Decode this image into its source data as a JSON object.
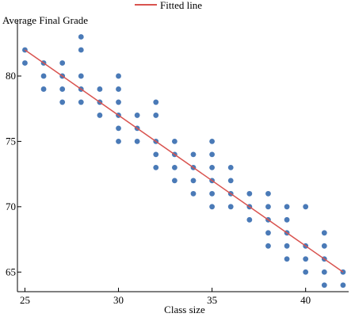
{
  "chart_data": {
    "type": "scatter",
    "title": "",
    "xlabel": "Class size",
    "ylabel": "Average Final Grade",
    "xlim": [
      24.6,
      42.3
    ],
    "ylim": [
      63.5,
      84
    ],
    "xticks": [
      25,
      30,
      35,
      40
    ],
    "yticks": [
      65,
      70,
      75,
      80
    ],
    "grid": false,
    "legend": {
      "position": "top-center",
      "entries": [
        "Fitted line"
      ]
    },
    "colors": {
      "points": "#4a7ab7",
      "line": "#d9534f"
    },
    "points": [
      [
        25,
        82
      ],
      [
        25,
        81
      ],
      [
        26,
        81
      ],
      [
        26,
        80
      ],
      [
        26,
        79
      ],
      [
        27,
        81
      ],
      [
        27,
        80
      ],
      [
        27,
        79
      ],
      [
        27,
        78
      ],
      [
        28,
        83
      ],
      [
        28,
        82
      ],
      [
        28,
        80
      ],
      [
        28,
        79
      ],
      [
        28,
        78
      ],
      [
        29,
        79
      ],
      [
        29,
        78
      ],
      [
        29,
        77
      ],
      [
        30,
        80
      ],
      [
        30,
        79
      ],
      [
        30,
        78
      ],
      [
        30,
        77
      ],
      [
        30,
        76
      ],
      [
        30,
        75
      ],
      [
        31,
        77
      ],
      [
        31,
        76
      ],
      [
        31,
        75
      ],
      [
        32,
        78
      ],
      [
        32,
        77
      ],
      [
        32,
        75
      ],
      [
        32,
        74
      ],
      [
        32,
        73
      ],
      [
        33,
        75
      ],
      [
        33,
        74
      ],
      [
        33,
        73
      ],
      [
        33,
        72
      ],
      [
        34,
        74
      ],
      [
        34,
        73
      ],
      [
        34,
        72
      ],
      [
        34,
        71
      ],
      [
        35,
        75
      ],
      [
        35,
        74
      ],
      [
        35,
        73
      ],
      [
        35,
        72
      ],
      [
        35,
        71
      ],
      [
        35,
        70
      ],
      [
        36,
        73
      ],
      [
        36,
        72
      ],
      [
        36,
        71
      ],
      [
        36,
        70
      ],
      [
        37,
        71
      ],
      [
        37,
        70
      ],
      [
        37,
        69
      ],
      [
        38,
        71
      ],
      [
        38,
        70
      ],
      [
        38,
        69
      ],
      [
        38,
        68
      ],
      [
        38,
        67
      ],
      [
        39,
        70
      ],
      [
        39,
        69
      ],
      [
        39,
        68
      ],
      [
        39,
        67
      ],
      [
        39,
        66
      ],
      [
        40,
        70
      ],
      [
        40,
        67
      ],
      [
        40,
        66
      ],
      [
        40,
        65
      ],
      [
        41,
        68
      ],
      [
        41,
        67
      ],
      [
        41,
        66
      ],
      [
        41,
        65
      ],
      [
        41,
        64
      ],
      [
        42,
        65
      ],
      [
        42,
        64
      ]
    ],
    "fitted_line": {
      "x": [
        25,
        42
      ],
      "y": [
        82,
        65
      ]
    }
  }
}
